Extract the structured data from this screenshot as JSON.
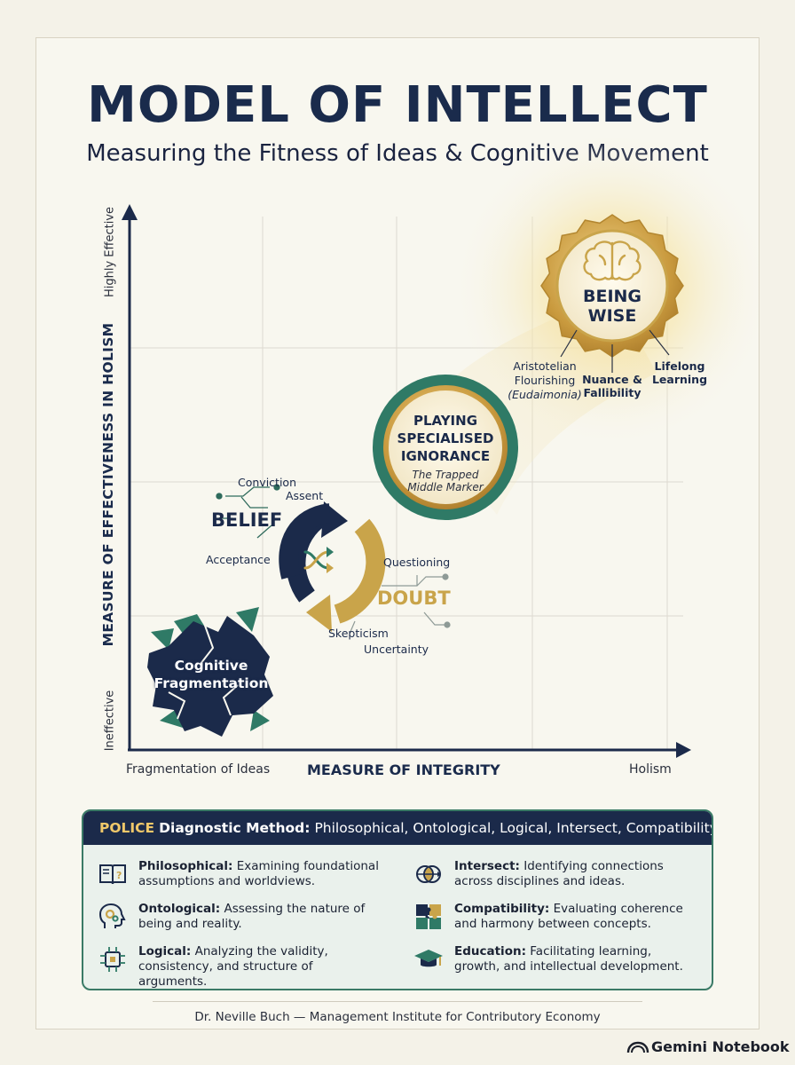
{
  "title": "MODEL OF INTELLECT",
  "subtitle": "Measuring the Fitness of Ideas & Cognitive Movement",
  "axes": {
    "y_title": "MEASURE OF EFFECTIVENESS IN HOLISM",
    "y_high": "Highly Effective",
    "y_low": "Ineffective",
    "x_title": "MEASURE OF INTEGRITY",
    "x_low": "Fragmentation of Ideas",
    "x_high": "Holism"
  },
  "nodes": {
    "being_wise": {
      "line1": "BEING",
      "line2": "WISE",
      "branches": [
        {
          "line1": "Aristotelian",
          "line2": "Flourishing",
          "line3": "(Eudaimonia)"
        },
        {
          "line1": "Nuance &",
          "line2": "Fallibility"
        },
        {
          "line1": "Lifelong",
          "line2": "Learning"
        }
      ]
    },
    "specialised": {
      "line1": "PLAYING",
      "line2": "SPECIALISED",
      "line3": "IGNORANCE",
      "note1": "The Trapped",
      "note2": "Middle Marker"
    },
    "belief": {
      "label": "BELIEF",
      "terms": [
        "Conviction",
        "Assent",
        "Acceptance"
      ]
    },
    "doubt": {
      "label": "DOUBT",
      "terms": [
        "Questioning",
        "Skepticism",
        "Uncertainty"
      ]
    },
    "fragmentation": {
      "line1": "Cognitive",
      "line2": "Fragmentation"
    }
  },
  "police": {
    "head_key": "POLICE",
    "head_title": "Diagnostic Method:",
    "head_list": "Philosophical, Ontological, Logical, Intersect, Compatibility, Education",
    "items": [
      {
        "icon": "open-book-icon",
        "name": "Philosophical:",
        "desc": "Examining foundational assumptions and worldviews."
      },
      {
        "icon": "head-gears-icon",
        "name": "Ontological:",
        "desc": "Assessing the nature of being and reality."
      },
      {
        "icon": "circuit-chip-icon",
        "name": "Logical:",
        "desc": "Analyzing the validity, consistency, and structure of arguments."
      },
      {
        "icon": "venn-arrow-icon",
        "name": "Intersect:",
        "desc": "Identifying connections across disciplines and ideas."
      },
      {
        "icon": "puzzle-icon",
        "name": "Compatibility:",
        "desc": "Evaluating coherence and harmony between concepts."
      },
      {
        "icon": "graduation-cap-icon",
        "name": "Education:",
        "desc": "Facilitating learning, growth, and intellectual development."
      }
    ]
  },
  "footer": "Dr. Neville Buch — Management Institute for Contributory Economy",
  "brand": "Gemini Notebook",
  "colors": {
    "navy": "#1b2a4a",
    "gold": "#c9a44a",
    "teal": "#2f7a66",
    "background": "#f4f2e8"
  }
}
